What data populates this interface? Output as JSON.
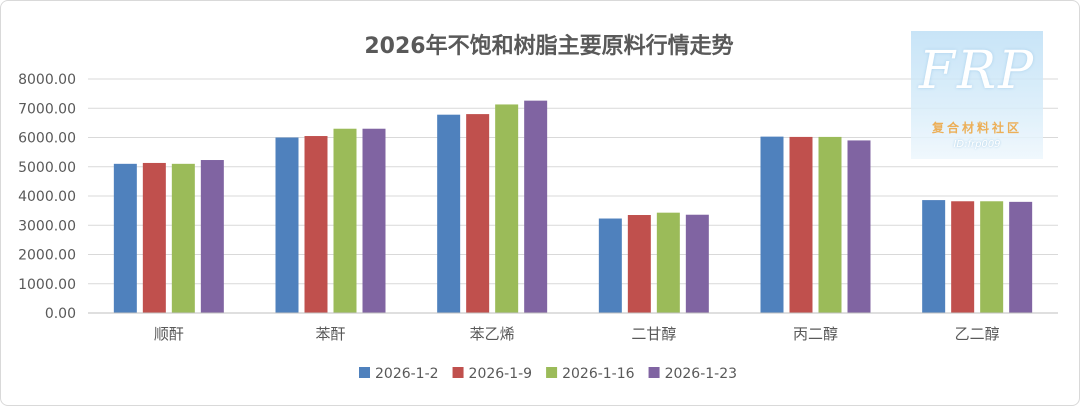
{
  "chart_data": {
    "type": "bar",
    "title": "2026年不饱和树脂主要原料行情走势",
    "categories": [
      "顺酐",
      "苯酐",
      "苯乙烯",
      "二甘醇",
      "丙二醇",
      "乙二醇"
    ],
    "series": [
      {
        "name": "2026-1-2",
        "color": "#4f81bd",
        "values": [
          5100,
          6000,
          6780,
          3230,
          6030,
          3860
        ]
      },
      {
        "name": "2026-1-9",
        "color": "#c0504d",
        "values": [
          5130,
          6050,
          6800,
          3350,
          6020,
          3820
        ]
      },
      {
        "name": "2026-1-16",
        "color": "#9bbb59",
        "values": [
          5100,
          6300,
          7130,
          3430,
          6020,
          3820
        ]
      },
      {
        "name": "2026-1-23",
        "color": "#8064a2",
        "values": [
          5230,
          6300,
          7260,
          3360,
          5900,
          3800
        ]
      }
    ],
    "ylim": [
      0,
      8000
    ],
    "yticks": [
      0,
      1000,
      2000,
      3000,
      4000,
      5000,
      6000,
      7000,
      8000
    ],
    "ytick_labels": [
      "0.00",
      "1000.00",
      "2000.00",
      "3000.00",
      "4000.00",
      "5000.00",
      "6000.00",
      "7000.00",
      "8000.00"
    ],
    "grid": true,
    "legend_position": "bottom"
  },
  "watermark": {
    "logo": "FRP",
    "text": "复合材料社区",
    "id": "ID:frp009"
  }
}
